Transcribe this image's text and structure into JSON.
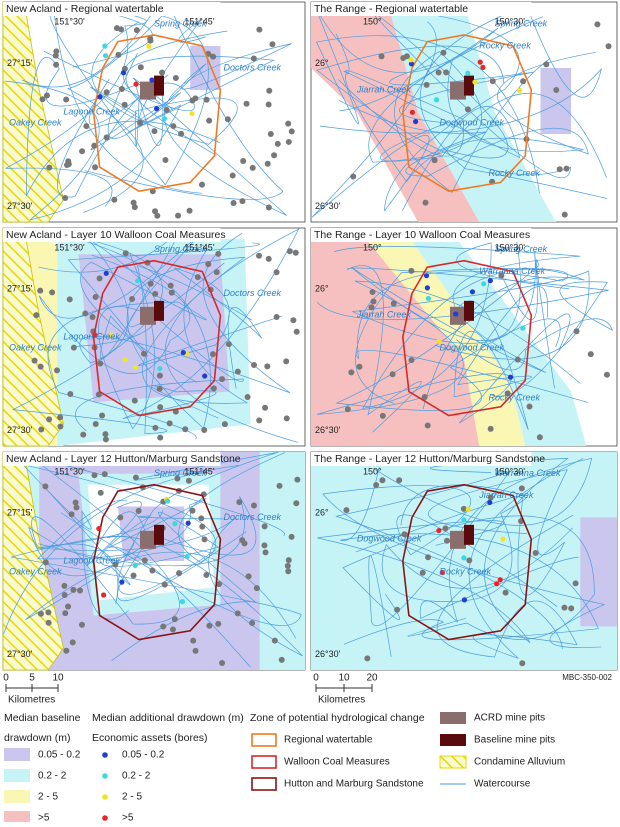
{
  "panels": [
    {
      "title": "New Acland - Regional watertable",
      "lat_labels": [
        "27°15'",
        "27°30'"
      ],
      "lon_labels": [
        "151°30'",
        "151°45'"
      ],
      "features": [
        "Oakey Creek",
        "Lagoon Creek",
        "Spring Creek",
        "Doctors Creek"
      ]
    },
    {
      "title": "The Range - Regional watertable",
      "lat_labels": [
        "26°",
        "26°30'"
      ],
      "lon_labels": [
        "150°",
        "150°30'"
      ],
      "features": [
        "Spring Creek",
        "Rocky Creek",
        "Jiarrah Creek",
        "Dogwood Creek",
        "Rocky Creek"
      ]
    },
    {
      "title": "New Acland - Layer 10 Walloon Coal Measures",
      "lat_labels": [
        "27°15'",
        "27°30'"
      ],
      "lon_labels": [
        "151°30'",
        "151°45'"
      ],
      "features": [
        "Oakey Creek",
        "Lagoon Creek",
        "Spring Creek",
        "Doctors Creek"
      ]
    },
    {
      "title": "The Range - Layer 10 Walloon Coal Measures",
      "lat_labels": [
        "26°",
        "26°30'"
      ],
      "lon_labels": [
        "150°",
        "150°30'"
      ],
      "features": [
        "Spring Creek",
        "Warranna Creek",
        "Jiarrah Creek",
        "Dogwood Creek",
        "Rocky Creek"
      ]
    },
    {
      "title": "New Acland - Layer 12 Hutton/Marburg Sandstone",
      "lat_labels": [
        "27°15'",
        "27°30'"
      ],
      "lon_labels": [
        "151°30'",
        "151°45'"
      ],
      "features": [
        "Oakey Creek",
        "Lagoon Creek",
        "Spring Creek",
        "Doctors Creek"
      ]
    },
    {
      "title": "The Range - Layer 12 Hutton/Marburg Sandstone",
      "lat_labels": [
        "26°",
        "26°30'"
      ],
      "lon_labels": [
        "150°",
        "150°30'"
      ],
      "features": [
        "Warranna Creek",
        "Jiarrah Creek",
        "Dogwood Creek",
        "Rocky Creek"
      ]
    }
  ],
  "scale_left": {
    "ticks": [
      "0",
      "5",
      "10"
    ],
    "unit": "Kilometres"
  },
  "scale_right": {
    "ticks": [
      "0",
      "10",
      "20"
    ],
    "unit": "Kilometres"
  },
  "figure_code": "MBC-350-002",
  "legend": {
    "baseline": {
      "title": [
        "Median baseline",
        "drawdown (m)"
      ],
      "classes": [
        {
          "label": "0.05 - 0.2",
          "color": "#cbc6ee"
        },
        {
          "label": "0.2 - 2",
          "color": "#c6f4f6"
        },
        {
          "label": "2 - 5",
          "color": "#faf6b4"
        },
        {
          "label": ">5",
          "color": "#f6c0c0"
        }
      ]
    },
    "additional": {
      "title": "Median additional drawdown (m)",
      "subtitle": "Economic assets (bores)",
      "classes": [
        {
          "label": "0.05 - 0.2",
          "color": "#1e3fd0"
        },
        {
          "label": "0.2 - 2",
          "color": "#3ad8e0"
        },
        {
          "label": "2 - 5",
          "color": "#f2e424"
        },
        {
          "label": ">5",
          "color": "#e8262a"
        }
      ]
    },
    "zones": {
      "title": "Zone of potential hydrological change",
      "items": [
        {
          "label": "Regional watertable",
          "color": "#f07a22"
        },
        {
          "label": "Walloon Coal Measures",
          "color": "#d42a2a"
        },
        {
          "label": "Hutton and Marburg Sandstone",
          "color": "#8a1414"
        }
      ]
    },
    "other": [
      {
        "label": "ACRD mine pits",
        "color": "#8a6e6e"
      },
      {
        "label": "Baseline mine pits",
        "color": "#5a0a0a"
      },
      {
        "label": "Condamine Alluvium",
        "color": "#e8d800"
      },
      {
        "label": "Watercourse",
        "color": "#4a9de0"
      }
    ]
  }
}
